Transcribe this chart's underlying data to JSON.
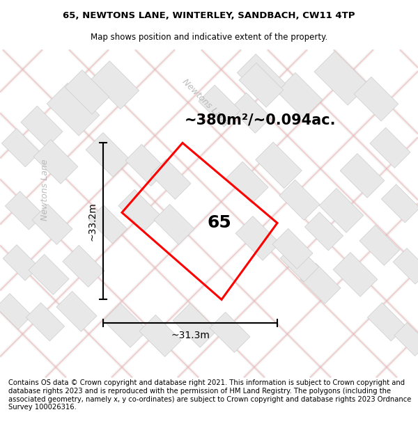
{
  "title_line1": "65, NEWTONS LANE, WINTERLEY, SANDBACH, CW11 4TP",
  "title_line2": "Map shows position and indicative extent of the property.",
  "area_text": "~380m²/~0.094ac.",
  "plot_number": "65",
  "dim_vertical": "~33.2m",
  "dim_horizontal": "~31.3m",
  "road_label": "Newtons Lane",
  "copyright_text": "Contains OS data © Crown copyright and database right 2021. This information is subject to Crown copyright and database rights 2023 and is reproduced with the permission of HM Land Registry. The polygons (including the associated geometry, namely x, y co-ordinates) are subject to Crown copyright and database rights 2023 Ordnance Survey 100026316.",
  "bg_color": "#ffffff",
  "plot_color": "#ff0000",
  "block_fill": "#e8e8e8",
  "block_edge": "#cccccc",
  "road_line_color": "#f0b0b0",
  "road_border_color": "#d0d0d0",
  "title_fontsize": 9.5,
  "subtitle_fontsize": 8.5,
  "area_fontsize": 15,
  "plot_num_fontsize": 18,
  "dim_fontsize": 10,
  "road_label_fontsize": 9,
  "copyright_fontsize": 7.2
}
